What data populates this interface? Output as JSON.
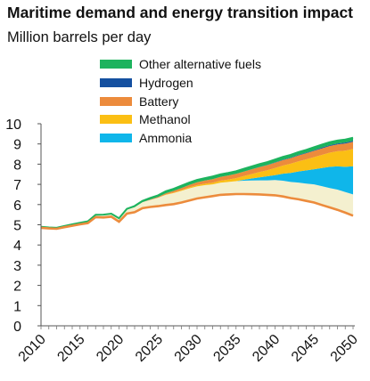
{
  "title": "Maritime demand and energy transition impact",
  "subtitle": "Million barrels per day",
  "legend": [
    {
      "label": "Other alternative fuels",
      "color": "#1db35e"
    },
    {
      "label": "Hydrogen",
      "color": "#1450a0"
    },
    {
      "label": "Battery",
      "color": "#ec8b3c"
    },
    {
      "label": "Methanol",
      "color": "#fbbf14"
    },
    {
      "label": "Ammonia",
      "color": "#0fb6ea"
    }
  ],
  "chart_data": {
    "type": "area",
    "x": [
      2010,
      2011,
      2012,
      2013,
      2014,
      2015,
      2016,
      2017,
      2018,
      2019,
      2020,
      2021,
      2022,
      2023,
      2024,
      2025,
      2026,
      2027,
      2028,
      2029,
      2030,
      2031,
      2032,
      2033,
      2034,
      2035,
      2036,
      2037,
      2038,
      2039,
      2040,
      2041,
      2042,
      2043,
      2044,
      2045,
      2046,
      2047,
      2048,
      2049,
      2050
    ],
    "baseline": {
      "name": "",
      "color": "#ec8b3c",
      "values": [
        4.85,
        4.82,
        4.8,
        4.88,
        4.95,
        5.02,
        5.08,
        5.38,
        5.36,
        5.4,
        5.15,
        5.55,
        5.62,
        5.82,
        5.88,
        5.92,
        5.98,
        6.02,
        6.1,
        6.2,
        6.3,
        6.36,
        6.42,
        6.48,
        6.5,
        6.52,
        6.52,
        6.51,
        6.5,
        6.48,
        6.46,
        6.4,
        6.32,
        6.26,
        6.18,
        6.1,
        5.98,
        5.86,
        5.74,
        5.6,
        5.45
      ]
    },
    "stack_colors": [
      "#f4f0cf",
      "#0fb6ea",
      "#fbbf14",
      "#ec8b3c",
      "#1450a0",
      "#1db35e"
    ],
    "series": [
      {
        "values": [
          0.05,
          0.05,
          0.05,
          0.06,
          0.07,
          0.08,
          0.09,
          0.1,
          0.12,
          0.13,
          0.15,
          0.2,
          0.25,
          0.3,
          0.35,
          0.42,
          0.5,
          0.55,
          0.58,
          0.6,
          0.6,
          0.6,
          0.58,
          0.6,
          0.62,
          0.64,
          0.66,
          0.68,
          0.7,
          0.72,
          0.75,
          0.78,
          0.8,
          0.83,
          0.86,
          0.9,
          0.93,
          0.96,
          1.0,
          1.02,
          1.05
        ]
      },
      {
        "name": "Ammonia",
        "values": [
          0,
          0,
          0,
          0,
          0,
          0,
          0,
          0,
          0,
          0,
          0,
          0,
          0,
          0,
          0,
          0,
          0,
          0,
          0,
          0,
          0,
          0,
          0,
          0,
          0,
          0,
          0.05,
          0.1,
          0.15,
          0.2,
          0.25,
          0.35,
          0.45,
          0.55,
          0.65,
          0.75,
          0.9,
          1.05,
          1.15,
          1.25,
          1.4
        ]
      },
      {
        "name": "Methanol",
        "values": [
          0,
          0,
          0,
          0,
          0,
          0,
          0,
          0,
          0,
          0,
          0,
          0,
          0,
          0,
          0,
          0,
          0.02,
          0.03,
          0.04,
          0.05,
          0.06,
          0.07,
          0.08,
          0.1,
          0.12,
          0.15,
          0.18,
          0.22,
          0.26,
          0.3,
          0.35,
          0.4,
          0.45,
          0.5,
          0.55,
          0.6,
          0.65,
          0.7,
          0.75,
          0.8,
          0.85
        ]
      },
      {
        "name": "Battery",
        "values": [
          0,
          0,
          0,
          0,
          0,
          0,
          0,
          0,
          0,
          0,
          0,
          0,
          0,
          0,
          0.02,
          0.04,
          0.06,
          0.08,
          0.1,
          0.12,
          0.14,
          0.16,
          0.18,
          0.19,
          0.2,
          0.21,
          0.22,
          0.23,
          0.24,
          0.25,
          0.26,
          0.27,
          0.28,
          0.29,
          0.3,
          0.31,
          0.32,
          0.33,
          0.34,
          0.35,
          0.36
        ]
      },
      {
        "name": "Hydrogen",
        "values": [
          0,
          0,
          0,
          0,
          0,
          0,
          0,
          0,
          0,
          0,
          0,
          0,
          0,
          0,
          0,
          0,
          0,
          0,
          0,
          0,
          0,
          0,
          0,
          0,
          0,
          0,
          0,
          0.01,
          0.01,
          0.01,
          0.02,
          0.02,
          0.02,
          0.03,
          0.03,
          0.03,
          0.04,
          0.04,
          0.04,
          0.05,
          0.05
        ]
      },
      {
        "name": "Other alternative fuels",
        "values": [
          0,
          0,
          0,
          0,
          0,
          0,
          0,
          0.02,
          0.02,
          0.02,
          0.02,
          0.04,
          0.06,
          0.06,
          0.08,
          0.08,
          0.1,
          0.1,
          0.12,
          0.12,
          0.12,
          0.12,
          0.13,
          0.13,
          0.13,
          0.13,
          0.14,
          0.14,
          0.14,
          0.14,
          0.14,
          0.14,
          0.14,
          0.14,
          0.14,
          0.15,
          0.15,
          0.15,
          0.15,
          0.15,
          0.15
        ]
      }
    ],
    "ylim": [
      0,
      10
    ],
    "xlim": [
      2010,
      2050
    ],
    "yticks": [
      "0",
      "1",
      "2",
      "3",
      "4",
      "5",
      "6",
      "7",
      "8",
      "9",
      "10"
    ],
    "xticks": [
      "2010",
      "2015",
      "2020",
      "2025",
      "2030",
      "2035",
      "2040",
      "2045",
      "2050"
    ]
  }
}
